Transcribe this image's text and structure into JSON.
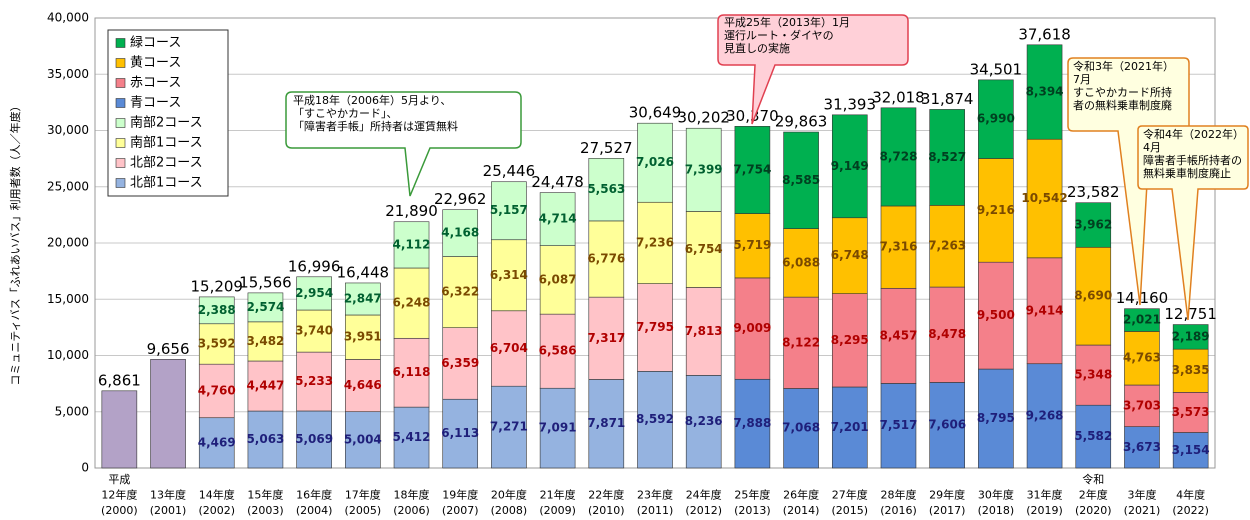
{
  "chart_data": {
    "type": "stacked_bar",
    "ylabel": "コミュニティバス「ふれあいバス」利用者数（人／年度）",
    "categories": [
      [
        "平成",
        "12年度",
        "(2000)"
      ],
      [
        "13年度",
        "(2001)"
      ],
      [
        "14年度",
        "(2002)"
      ],
      [
        "15年度",
        "(2003)"
      ],
      [
        "16年度",
        "(2004)"
      ],
      [
        "17年度",
        "(2005)"
      ],
      [
        "18年度",
        "(2006)"
      ],
      [
        "19年度",
        "(2007)"
      ],
      [
        "20年度",
        "(2008)"
      ],
      [
        "21年度",
        "(2009)"
      ],
      [
        "22年度",
        "(2010)"
      ],
      [
        "23年度",
        "(2011)"
      ],
      [
        "24年度",
        "(2012)"
      ],
      [
        "25年度",
        "(2013)"
      ],
      [
        "26年度",
        "(2014)"
      ],
      [
        "27年度",
        "(2015)"
      ],
      [
        "28年度",
        "(2016)"
      ],
      [
        "29年度",
        "(2017)"
      ],
      [
        "30年度",
        "(2018)"
      ],
      [
        "31年度",
        "(2019)"
      ],
      [
        "令和",
        "2年度",
        "(2020)"
      ],
      [
        "3年度",
        "(2021)"
      ],
      [
        "4年度",
        "(2022)"
      ]
    ],
    "series": [
      {
        "color": "#b3a2c7",
        "values": [
          6861,
          9656,
          null,
          null,
          null,
          null,
          null,
          null,
          null,
          null,
          null,
          null,
          null,
          null,
          null,
          null,
          null,
          null,
          null,
          null,
          null,
          null,
          null
        ]
      },
      {
        "name": "北部1コース",
        "color": "#95b3e0",
        "label_color": "#1f1f7a",
        "values": [
          null,
          null,
          4469,
          5063,
          5069,
          5004,
          5412,
          6113,
          7271,
          7091,
          7871,
          8592,
          8236,
          null,
          null,
          null,
          null,
          null,
          null,
          null,
          null,
          null,
          null
        ],
        "value_labels": [
          null,
          null,
          "4,469",
          "5,063",
          "5,069",
          "5,004",
          "5,412",
          "6,113",
          "7,271",
          "7,091",
          "7,871",
          "8,592",
          "8,236",
          null,
          null,
          null,
          null,
          null,
          null,
          null,
          null,
          null,
          null
        ]
      },
      {
        "name": "北部2コース",
        "color": "#ffc3c8",
        "label_color": "#b00000",
        "values": [
          null,
          null,
          4760,
          4447,
          5233,
          4646,
          6118,
          6359,
          6704,
          6586,
          7317,
          7795,
          7813,
          null,
          null,
          null,
          null,
          null,
          null,
          null,
          null,
          null,
          null
        ],
        "value_labels": [
          null,
          null,
          "4,760",
          "4,447",
          "5,233",
          "4,646",
          "6,118",
          "6,359",
          "6,704",
          "6,586",
          "7,317",
          "7,795",
          "7,813",
          null,
          null,
          null,
          null,
          null,
          null,
          null,
          null,
          null,
          null
        ]
      },
      {
        "name": "南部1コース",
        "color": "#ffff99",
        "label_color": "#7a4a00",
        "values": [
          null,
          null,
          3592,
          3482,
          3740,
          3951,
          6248,
          6322,
          6314,
          6087,
          6776,
          7236,
          6754,
          null,
          null,
          null,
          null,
          null,
          null,
          null,
          null,
          null,
          null
        ],
        "value_labels": [
          null,
          null,
          "3,592",
          "3,482",
          "3,740",
          "3,951",
          "6,248",
          "6,322",
          "6,314",
          "6,087",
          "6,776",
          "7,236",
          "6,754",
          null,
          null,
          null,
          null,
          null,
          null,
          null,
          null,
          null,
          null
        ]
      },
      {
        "name": "南部2コース",
        "color": "#ccffcc",
        "label_color": "#006030",
        "values": [
          null,
          null,
          2388,
          2574,
          2954,
          2847,
          4112,
          4168,
          5157,
          4714,
          5563,
          7026,
          7399,
          null,
          null,
          null,
          null,
          null,
          null,
          null,
          null,
          null,
          null
        ],
        "value_labels": [
          null,
          null,
          "2,388",
          "2,574",
          "2,954",
          "2,847",
          "4,112",
          "4,168",
          "5,157",
          "4,714",
          "5,563",
          "7,026",
          "7,399",
          null,
          null,
          null,
          null,
          null,
          null,
          null,
          null,
          null,
          null
        ]
      },
      {
        "name": "青コース",
        "color": "#5a8ad6",
        "label_color": "#1f1f7a",
        "values": [
          null,
          null,
          null,
          null,
          null,
          null,
          null,
          null,
          null,
          null,
          null,
          null,
          null,
          7888,
          7068,
          7201,
          7517,
          7606,
          8795,
          9268,
          5582,
          3673,
          3154
        ],
        "value_labels": [
          null,
          null,
          null,
          null,
          null,
          null,
          null,
          null,
          null,
          null,
          null,
          null,
          null,
          "7,888",
          "7,068",
          "7,201",
          "7,517",
          "7,606",
          "8,795",
          "9,268",
          "5,582",
          "3,673",
          "3,154"
        ]
      },
      {
        "name": "赤コース",
        "color": "#f4808a",
        "label_color": "#b00000",
        "values": [
          null,
          null,
          null,
          null,
          null,
          null,
          null,
          null,
          null,
          null,
          null,
          null,
          null,
          9009,
          8122,
          8295,
          8457,
          8478,
          9500,
          9414,
          5348,
          3703,
          3573
        ],
        "value_labels": [
          null,
          null,
          null,
          null,
          null,
          null,
          null,
          null,
          null,
          null,
          null,
          null,
          null,
          "9,009",
          "8,122",
          "8,295",
          "8,457",
          "8,478",
          "9,500",
          "9,414",
          "5,348",
          "3,703",
          "3,573"
        ]
      },
      {
        "name": "黄コース",
        "color": "#ffc000",
        "label_color": "#7a4a00",
        "values": [
          null,
          null,
          null,
          null,
          null,
          null,
          null,
          null,
          null,
          null,
          null,
          null,
          null,
          5719,
          6088,
          6748,
          7316,
          7263,
          9216,
          10542,
          8690,
          4763,
          3835
        ],
        "value_labels": [
          null,
          null,
          null,
          null,
          null,
          null,
          null,
          null,
          null,
          null,
          null,
          null,
          null,
          "5,719",
          "6,088",
          "6,748",
          "7,316",
          "7,263",
          "9,216",
          "10,542",
          "8,690",
          "4,763",
          "3,835"
        ]
      },
      {
        "name": "緑コース",
        "color": "#00b050",
        "label_color": "#004020",
        "values": [
          null,
          null,
          null,
          null,
          null,
          null,
          null,
          null,
          null,
          null,
          null,
          null,
          null,
          7754,
          8585,
          9149,
          8728,
          8527,
          6990,
          8394,
          3962,
          2021,
          2189
        ],
        "value_labels": [
          null,
          null,
          null,
          null,
          null,
          null,
          null,
          null,
          null,
          null,
          null,
          null,
          null,
          "7,754",
          "8,585",
          "9,149",
          "8,728",
          "8,527",
          "6,990",
          "8,394",
          "3,962",
          "2,021",
          "2,189"
        ]
      }
    ],
    "totals": [
      6861,
      9656,
      15209,
      15566,
      16996,
      16448,
      21890,
      22962,
      25446,
      24478,
      27527,
      30649,
      30202,
      30370,
      29863,
      31393,
      32018,
      31874,
      34501,
      37618,
      23582,
      14160,
      12751
    ],
    "total_labels": [
      "6,861",
      "9,656",
      "15,209",
      "15,566",
      "16,996",
      "16,448",
      "21,890",
      "22,962",
      "25,446",
      "24,478",
      "27,527",
      "30,649",
      "30,202",
      "30,370",
      "29,863",
      "31,393",
      "32,018",
      "31,874",
      "34,501",
      "37,618",
      "23,582",
      "14,160",
      "12,751"
    ],
    "ylim": [
      0,
      40000
    ],
    "yticks": [
      0,
      {
        "value": 5000,
        "label": "5,000"
      },
      {
        "value": 10000,
        "label": "10,000"
      },
      {
        "value": 15000,
        "label": "15,000"
      },
      {
        "value": 20000,
        "label": "20,000"
      },
      {
        "value": 25000,
        "label": "25,000"
      },
      {
        "value": 30000,
        "label": "30,000"
      },
      {
        "value": 35000,
        "label": "35,000"
      },
      {
        "value": 40000,
        "label": "40,000"
      }
    ],
    "grid": true,
    "legend": "upper left",
    "annotations": [
      [
        "平成18年（2006年）5月より、",
        "「すこやかカード」、",
        "「障害者手帳」所持者は運賃無料"
      ],
      [
        "平成25年（2013年）1月",
        "運行ルート・ダイヤの",
        "見直しの実施"
      ],
      [
        "令和3年（2021年）",
        "7月",
        "すこやかカード所持",
        "者の無料乗車制度廃"
      ],
      [
        "令和4年（2022年）",
        "4月",
        "障害者手帳所持者の",
        "無料乗車制度廃止"
      ]
    ]
  }
}
